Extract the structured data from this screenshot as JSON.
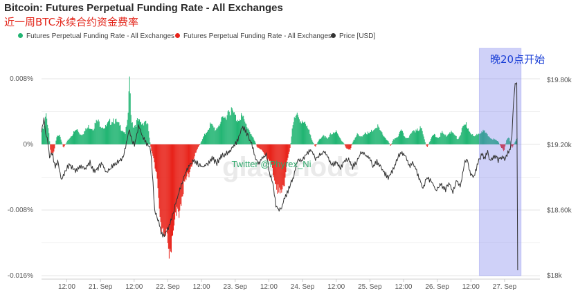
{
  "chart_data": {
    "type": "bar",
    "title": "Bitcoin: Futures Perpetual Funding Rate - All Exchanges",
    "subtitle": "近一周BTC永续合约资金费率",
    "legend_position": "top",
    "legend": [
      {
        "label": "Futures Perpetual Funding Rate - All Exchanges",
        "color": "#22b573"
      },
      {
        "label": "Futures Perpetual Funding Rate - All Exchanges",
        "color": "#e8231a"
      },
      {
        "label": "Price [USD]",
        "color": "#333333"
      }
    ],
    "y_left": {
      "ticks": [
        "0.008%",
        "0%",
        "-0.008%",
        "-0.016%"
      ],
      "values": [
        0.008,
        0,
        -0.008,
        -0.016
      ],
      "range": [
        -0.016,
        0.0085
      ]
    },
    "y_right": {
      "ticks": [
        "$19.80k",
        "$19.20k",
        "$18.60k",
        "$18k"
      ],
      "values": [
        19800,
        19200,
        18600,
        18000
      ],
      "range": [
        18000,
        19850
      ]
    },
    "x": {
      "range": [
        0,
        7.4
      ],
      "ticks": [
        {
          "label": "12:00",
          "t": 0.375
        },
        {
          "label": "21. Sep",
          "t": 0.875
        },
        {
          "label": "12:00",
          "t": 1.375
        },
        {
          "label": "22. Sep",
          "t": 1.875
        },
        {
          "label": "12:00",
          "t": 2.375
        },
        {
          "label": "23. Sep",
          "t": 2.875
        },
        {
          "label": "12:00",
          "t": 3.375
        },
        {
          "label": "24. Sep",
          "t": 3.875
        },
        {
          "label": "12:00",
          "t": 4.375
        },
        {
          "label": "25. Sep",
          "t": 4.875
        },
        {
          "label": "12:00",
          "t": 5.375
        },
        {
          "label": "26. Sep",
          "t": 5.875
        },
        {
          "label": "12:00",
          "t": 6.375
        },
        {
          "label": "27. Sep",
          "t": 6.875
        }
      ]
    },
    "funding_rate_keyframes": [
      [
        0.0,
        0.0015
      ],
      [
        0.03,
        0.002
      ],
      [
        0.06,
        0.0035
      ],
      [
        0.09,
        0.0025
      ],
      [
        0.11,
        0.001
      ],
      [
        0.13,
        -0.0012
      ],
      [
        0.18,
        -0.0008
      ],
      [
        0.22,
        0.0008
      ],
      [
        0.26,
        0.0014
      ],
      [
        0.32,
        -0.0004
      ],
      [
        0.38,
        0.0004
      ],
      [
        0.45,
        0.0012
      ],
      [
        0.52,
        0.0018
      ],
      [
        0.58,
        0.0012
      ],
      [
        0.64,
        0.0016
      ],
      [
        0.7,
        0.0022
      ],
      [
        0.76,
        0.002
      ],
      [
        0.82,
        0.0028
      ],
      [
        0.88,
        0.0024
      ],
      [
        0.94,
        0.002
      ],
      [
        1.0,
        0.0026
      ],
      [
        1.06,
        0.0032
      ],
      [
        1.12,
        0.0025
      ],
      [
        1.18,
        0.002
      ],
      [
        1.24,
        0.0014
      ],
      [
        1.28,
        0.003
      ],
      [
        1.3,
        0.0088
      ],
      [
        1.32,
        0.0035
      ],
      [
        1.36,
        0.0022
      ],
      [
        1.42,
        0.0028
      ],
      [
        1.48,
        0.0025
      ],
      [
        1.54,
        0.003
      ],
      [
        1.58,
        0.002
      ],
      [
        1.6,
        0.0005
      ],
      [
        1.62,
        -0.0004
      ],
      [
        1.66,
        -0.002
      ],
      [
        1.72,
        -0.005
      ],
      [
        1.78,
        -0.01
      ],
      [
        1.82,
        -0.0118
      ],
      [
        1.86,
        -0.0122
      ],
      [
        1.92,
        -0.0115
      ],
      [
        1.98,
        -0.01
      ],
      [
        2.04,
        -0.0075
      ],
      [
        2.1,
        -0.0055
      ],
      [
        2.16,
        -0.004
      ],
      [
        2.22,
        -0.0025
      ],
      [
        2.28,
        -0.0012
      ],
      [
        2.32,
        -0.0004
      ],
      [
        2.36,
        0.0002
      ],
      [
        2.42,
        0.0012
      ],
      [
        2.5,
        0.0024
      ],
      [
        2.58,
        0.0018
      ],
      [
        2.64,
        0.0026
      ],
      [
        2.72,
        0.0032
      ],
      [
        2.78,
        0.0044
      ],
      [
        2.84,
        0.0038
      ],
      [
        2.9,
        0.003
      ],
      [
        2.96,
        0.0036
      ],
      [
        3.02,
        0.0025
      ],
      [
        3.08,
        0.0018
      ],
      [
        3.12,
        0.001
      ],
      [
        3.16,
        0.0004
      ],
      [
        3.2,
        -0.0004
      ],
      [
        3.28,
        -0.0008
      ],
      [
        3.34,
        -0.0015
      ],
      [
        3.4,
        -0.0024
      ],
      [
        3.46,
        -0.004
      ],
      [
        3.52,
        -0.006
      ],
      [
        3.56,
        -0.006
      ],
      [
        3.6,
        -0.0045
      ],
      [
        3.64,
        -0.002
      ],
      [
        3.68,
        -0.0008
      ],
      [
        3.7,
        0.0004
      ],
      [
        3.72,
        0.0025
      ],
      [
        3.78,
        0.0034
      ],
      [
        3.86,
        0.003
      ],
      [
        3.92,
        0.0022
      ],
      [
        3.98,
        0.0014
      ],
      [
        4.02,
        0.0004
      ],
      [
        4.06,
        -0.0003
      ],
      [
        4.12,
        0.0006
      ],
      [
        4.18,
        0.0012
      ],
      [
        4.24,
        0.0006
      ],
      [
        4.3,
        0.0014
      ],
      [
        4.36,
        0.0016
      ],
      [
        4.42,
        0.0008
      ],
      [
        4.48,
        0.0002
      ],
      [
        4.52,
        -0.0005
      ],
      [
        4.58,
        -0.0006
      ],
      [
        4.62,
        0.0004
      ],
      [
        4.68,
        0.0012
      ],
      [
        4.74,
        0.0008
      ],
      [
        4.8,
        0.0016
      ],
      [
        4.86,
        0.0012
      ],
      [
        4.92,
        0.0018
      ],
      [
        4.98,
        0.0022
      ],
      [
        5.04,
        0.0014
      ],
      [
        5.1,
        0.0008
      ],
      [
        5.14,
        0.0004
      ],
      [
        5.18,
        -0.0002
      ],
      [
        5.22,
        0.0006
      ],
      [
        5.28,
        0.001
      ],
      [
        5.34,
        0.0016
      ],
      [
        5.4,
        0.0008
      ],
      [
        5.46,
        0.001
      ],
      [
        5.52,
        0.0016
      ],
      [
        5.58,
        0.002
      ],
      [
        5.64,
        0.0018
      ],
      [
        5.68,
        0.0006
      ],
      [
        5.72,
        -0.0004
      ],
      [
        5.76,
        0.0004
      ],
      [
        5.82,
        0.0012
      ],
      [
        5.88,
        0.0008
      ],
      [
        5.94,
        0.0014
      ],
      [
        6.0,
        0.001
      ],
      [
        6.06,
        0.0016
      ],
      [
        6.12,
        0.0012
      ],
      [
        6.18,
        0.0006
      ],
      [
        6.24,
        0.0018
      ],
      [
        6.3,
        0.0024
      ],
      [
        6.36,
        0.0016
      ],
      [
        6.42,
        0.0008
      ],
      [
        6.48,
        0.0014
      ],
      [
        6.54,
        0.0018
      ],
      [
        6.6,
        0.0012
      ],
      [
        6.66,
        0.0008
      ],
      [
        6.72,
        0.0006
      ],
      [
        6.78,
        0.0003
      ],
      [
        6.82,
        -0.0004
      ],
      [
        6.86,
        -0.0008
      ],
      [
        6.9,
        0.0005
      ],
      [
        6.94,
        0.0008
      ],
      [
        6.98,
        -0.0005
      ],
      [
        7.02,
        0.0002
      ],
      [
        7.06,
        0.0008
      ]
    ],
    "price_keyframes": [
      [
        0.0,
        19320
      ],
      [
        0.04,
        19450
      ],
      [
        0.06,
        19300
      ],
      [
        0.09,
        19250
      ],
      [
        0.12,
        19100
      ],
      [
        0.16,
        19130
      ],
      [
        0.2,
        19000
      ],
      [
        0.24,
        19050
      ],
      [
        0.3,
        18880
      ],
      [
        0.36,
        18980
      ],
      [
        0.42,
        19020
      ],
      [
        0.5,
        18960
      ],
      [
        0.58,
        19000
      ],
      [
        0.66,
        18990
      ],
      [
        0.72,
        19040
      ],
      [
        0.78,
        18960
      ],
      [
        0.82,
        18980
      ],
      [
        0.9,
        19030
      ],
      [
        0.96,
        18950
      ],
      [
        1.02,
        18980
      ],
      [
        1.08,
        19030
      ],
      [
        1.16,
        19060
      ],
      [
        1.22,
        19100
      ],
      [
        1.3,
        19340
      ],
      [
        1.34,
        19250
      ],
      [
        1.38,
        19200
      ],
      [
        1.44,
        19380
      ],
      [
        1.5,
        19280
      ],
      [
        1.56,
        19220
      ],
      [
        1.6,
        19180
      ],
      [
        1.62,
        19150
      ],
      [
        1.64,
        19000
      ],
      [
        1.68,
        18600
      ],
      [
        1.74,
        18500
      ],
      [
        1.78,
        18380
      ],
      [
        1.82,
        18360
      ],
      [
        1.88,
        18440
      ],
      [
        1.94,
        18540
      ],
      [
        2.0,
        18680
      ],
      [
        2.06,
        18810
      ],
      [
        2.12,
        18920
      ],
      [
        2.18,
        19000
      ],
      [
        2.26,
        19060
      ],
      [
        2.32,
        19030
      ],
      [
        2.4,
        19000
      ],
      [
        2.46,
        19030
      ],
      [
        2.54,
        19080
      ],
      [
        2.6,
        19030
      ],
      [
        2.66,
        19100
      ],
      [
        2.74,
        19120
      ],
      [
        2.8,
        19150
      ],
      [
        2.86,
        19190
      ],
      [
        2.92,
        19250
      ],
      [
        2.98,
        19380
      ],
      [
        3.04,
        19320
      ],
      [
        3.08,
        19260
      ],
      [
        3.12,
        19210
      ],
      [
        3.16,
        19120
      ],
      [
        3.22,
        19020
      ],
      [
        3.28,
        19080
      ],
      [
        3.34,
        19120
      ],
      [
        3.38,
        18960
      ],
      [
        3.44,
        18830
      ],
      [
        3.48,
        18650
      ],
      [
        3.52,
        18600
      ],
      [
        3.56,
        18620
      ],
      [
        3.6,
        18700
      ],
      [
        3.66,
        18780
      ],
      [
        3.7,
        18850
      ],
      [
        3.74,
        18900
      ],
      [
        3.8,
        19060
      ],
      [
        3.86,
        19050
      ],
      [
        3.94,
        19130
      ],
      [
        4.0,
        19160
      ],
      [
        4.06,
        19080
      ],
      [
        4.12,
        19100
      ],
      [
        4.2,
        19140
      ],
      [
        4.26,
        19080
      ],
      [
        4.32,
        19020
      ],
      [
        4.38,
        19050
      ],
      [
        4.44,
        18980
      ],
      [
        4.5,
        19060
      ],
      [
        4.56,
        19080
      ],
      [
        4.62,
        19000
      ],
      [
        4.68,
        19040
      ],
      [
        4.74,
        19130
      ],
      [
        4.8,
        19110
      ],
      [
        4.86,
        19090
      ],
      [
        4.92,
        19010
      ],
      [
        4.98,
        19050
      ],
      [
        5.04,
        19000
      ],
      [
        5.1,
        18940
      ],
      [
        5.16,
        18900
      ],
      [
        5.22,
        18980
      ],
      [
        5.28,
        19080
      ],
      [
        5.34,
        19140
      ],
      [
        5.4,
        19100
      ],
      [
        5.46,
        19000
      ],
      [
        5.52,
        19040
      ],
      [
        5.58,
        18940
      ],
      [
        5.62,
        18880
      ],
      [
        5.66,
        18800
      ],
      [
        5.72,
        18900
      ],
      [
        5.8,
        18860
      ],
      [
        5.86,
        18780
      ],
      [
        5.92,
        18850
      ],
      [
        6.0,
        18790
      ],
      [
        6.06,
        18850
      ],
      [
        6.1,
        18760
      ],
      [
        6.16,
        18880
      ],
      [
        6.22,
        18820
      ],
      [
        6.28,
        19040
      ],
      [
        6.32,
        19080
      ],
      [
        6.36,
        18950
      ],
      [
        6.42,
        18900
      ],
      [
        6.48,
        19040
      ],
      [
        6.54,
        19130
      ],
      [
        6.58,
        19080
      ],
      [
        6.62,
        19140
      ],
      [
        6.66,
        19050
      ],
      [
        6.72,
        19100
      ],
      [
        6.78,
        19060
      ],
      [
        6.84,
        19100
      ],
      [
        6.88,
        19080
      ],
      [
        6.92,
        19120
      ],
      [
        6.96,
        19180
      ],
      [
        6.98,
        19250
      ],
      [
        7.0,
        19480
      ],
      [
        7.02,
        19700
      ],
      [
        7.04,
        19780
      ],
      [
        7.06,
        19760
      ],
      [
        7.07,
        18050
      ]
    ],
    "highlight_range": [
      6.5,
      7.12
    ],
    "annotation": "晚20点开始",
    "watermark": "Twitter @Phyrex_Ni",
    "bg_watermark": "glassnode",
    "colors": {
      "positive": "#22b573",
      "negative": "#e8231a",
      "price": "#333333",
      "highlight": "#6b6fe8"
    }
  }
}
